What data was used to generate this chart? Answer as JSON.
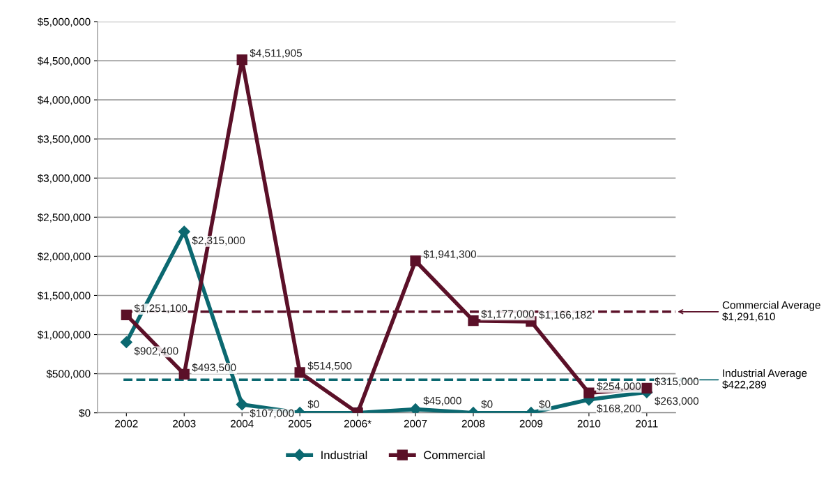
{
  "chart_data": {
    "type": "line",
    "categories": [
      "2002",
      "2003",
      "2004",
      "2005",
      "2006*",
      "2007",
      "2008",
      "2009",
      "2010",
      "2011"
    ],
    "series": [
      {
        "name": "Industrial",
        "color": "#0b6870",
        "marker": "diamond",
        "values": [
          902400,
          2315000,
          107000,
          0,
          0,
          45000,
          0,
          0,
          168200,
          263000
        ],
        "value_labels": [
          "$902,400",
          "$2,315,000",
          "$107,000",
          "$0",
          null,
          "$45,000",
          "$0",
          "$0",
          "$168,200",
          "$263,000"
        ]
      },
      {
        "name": "Commercial",
        "color": "#5b1028",
        "marker": "square",
        "values": [
          1251100,
          493500,
          4511905,
          514500,
          0,
          1941300,
          1177000,
          1166182,
          254000,
          315000
        ],
        "value_labels": [
          "$1,251,100",
          "$493,500",
          "$4,511,905",
          "$514,500",
          null,
          "$1,941,300",
          "$1,177,000",
          "$1,166,182",
          "$254,000",
          "$315,000"
        ]
      }
    ],
    "ylim": [
      0,
      5000000
    ],
    "yticks": [
      {
        "value": 0,
        "label": "$0"
      },
      {
        "value": 500000,
        "label": "$500,000"
      },
      {
        "value": 1000000,
        "label": "$1,000,000"
      },
      {
        "value": 1500000,
        "label": "$1,500,000"
      },
      {
        "value": 2000000,
        "label": "$2,000,000"
      },
      {
        "value": 2500000,
        "label": "$2,500,000"
      },
      {
        "value": 3000000,
        "label": "$3,000,000"
      },
      {
        "value": 3500000,
        "label": "$3,500,000"
      },
      {
        "value": 4000000,
        "label": "$4,000,000"
      },
      {
        "value": 4500000,
        "label": "$4,500,000"
      },
      {
        "value": 5000000,
        "label": "$5,000,000"
      }
    ],
    "ref_lines": [
      {
        "axis": "y",
        "value": 1291610,
        "label": "Commercial Average\n$1,291,610",
        "color": "#5b1028",
        "line_style": "dashed"
      },
      {
        "axis": "y",
        "value": 422289,
        "label": "Industrial Average\n$422,289",
        "color": "#0b6870",
        "line_style": "dashed"
      }
    ],
    "grid": "y",
    "legend": "bottom",
    "line_style": "solid"
  }
}
